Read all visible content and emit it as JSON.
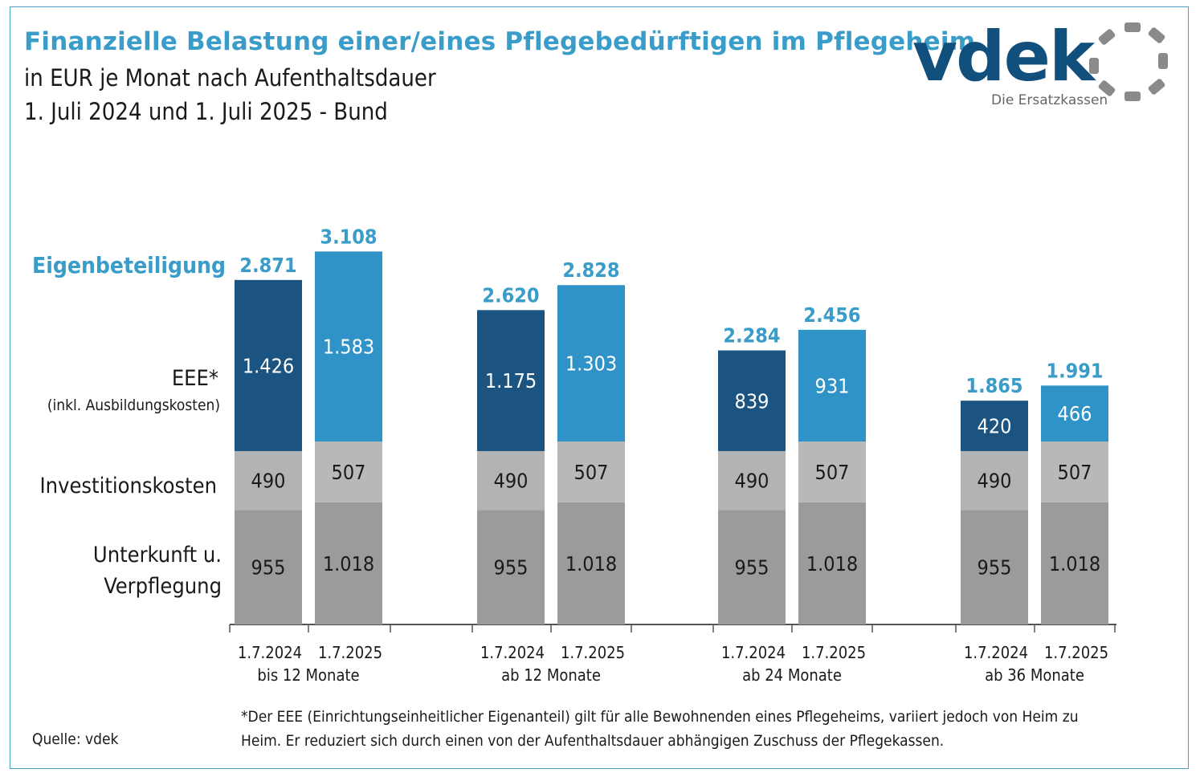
{
  "header": {
    "title": "Finanzielle Belastung einer/eines Pflegebedürftigen im Pflegeheim",
    "subtitle": "in EUR je Monat nach Aufenthaltsdauer",
    "subtitle2": "1. Juli 2024 und 1. Juli 2025 - Bund"
  },
  "logo": {
    "name": "vdek",
    "tagline": "Die Ersatzkassen"
  },
  "legend": {
    "eigenbeteiligung": "Eigenbeteiligung",
    "eee": "EEE*",
    "eee_note": "(inkl. Ausbildungskosten)",
    "investition": "Investitionskosten",
    "unterkunft_line1": "Unterkunft u.",
    "unterkunft_line2": "Verpflegung"
  },
  "footer": {
    "source": "Quelle: vdek",
    "footnote": "*Der EEE (Einrichtungseinheitlicher Eigenanteil) gilt für alle Bewohnenden eines Pflegeheims, variiert jedoch von Heim zu Heim. Er reduziert sich durch einen von der Aufenthaltsdauer abhängigen Zuschuss der Pflegekassen."
  },
  "colors": {
    "title": "#3a9cc9",
    "eee_2024": "#1b5480",
    "eee_2025": "#2f93c7",
    "investition_2024": "#b3b3b3",
    "investition_2025": "#b8b8b8",
    "unterkunft": "#9b9b9b",
    "total_label": "#3a9cc9"
  },
  "chart_data": {
    "type": "bar",
    "stacked": true,
    "groups": [
      "bis 12 Monate",
      "ab 12 Monate",
      "ab 24 Monate",
      "ab 36 Monate"
    ],
    "bar_labels": [
      "1.7.2024",
      "1.7.2025"
    ],
    "series": [
      {
        "name": "Unterkunft u. Verpflegung",
        "values_2024": [
          955,
          955,
          955,
          955
        ],
        "values_2025": [
          1018,
          1018,
          1018,
          1018
        ],
        "labels_2024": [
          "955",
          "955",
          "955",
          "955"
        ],
        "labels_2025": [
          "1.018",
          "1.018",
          "1.018",
          "1.018"
        ]
      },
      {
        "name": "Investitionskosten",
        "values_2024": [
          490,
          490,
          490,
          490
        ],
        "values_2025": [
          507,
          507,
          507,
          507
        ],
        "labels_2024": [
          "490",
          "490",
          "490",
          "490"
        ],
        "labels_2025": [
          "507",
          "507",
          "507",
          "507"
        ]
      },
      {
        "name": "EEE* (inkl. Ausbildungskosten)",
        "values_2024": [
          1426,
          1175,
          839,
          420
        ],
        "values_2025": [
          1583,
          1303,
          931,
          466
        ],
        "labels_2024": [
          "1.426",
          "1.175",
          "839",
          "420"
        ],
        "labels_2025": [
          "1.583",
          "1.303",
          "931",
          "466"
        ]
      }
    ],
    "totals_2024": [
      2871,
      2620,
      2284,
      1865
    ],
    "totals_2025": [
      3108,
      2828,
      2456,
      1991
    ],
    "total_labels_2024": [
      "2.871",
      "2.620",
      "2.284",
      "1.865"
    ],
    "total_labels_2025": [
      "3.108",
      "2.828",
      "2.456",
      "1.991"
    ],
    "total_label_name": "Eigenbeteiligung",
    "grid": false
  }
}
